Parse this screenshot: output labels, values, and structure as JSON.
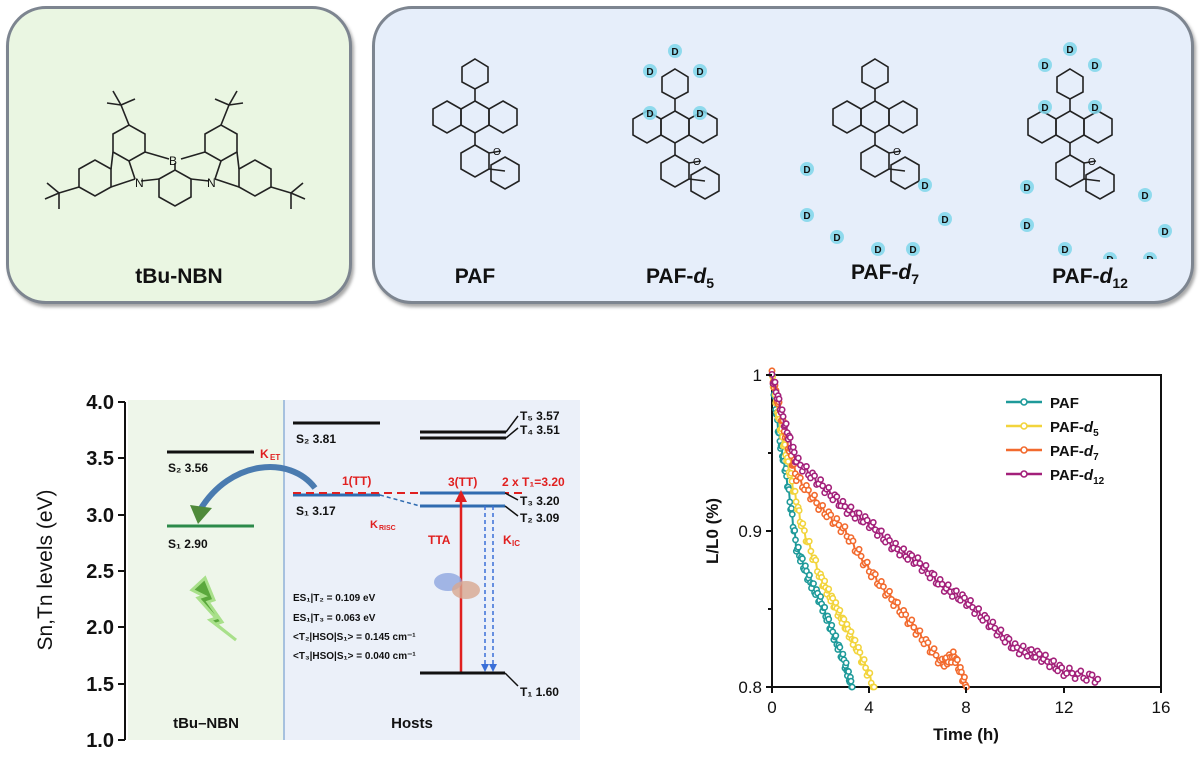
{
  "panels": {
    "emitter": {
      "label": "tBu-NBN",
      "atoms": [
        "B",
        "N",
        "N"
      ]
    },
    "hosts": [
      {
        "label": "PAF",
        "suffix": "",
        "deuterium_count": 0
      },
      {
        "label": "PAF-",
        "suffix": "d",
        "sub": "5",
        "deuterium_count": 5
      },
      {
        "label": "PAF-",
        "suffix": "d",
        "sub": "7",
        "deuterium_count": 7
      },
      {
        "label": "PAF-",
        "suffix": "d",
        "sub": "12",
        "deuterium_count": 12
      }
    ],
    "deuterium_symbol": "D",
    "oxygen_symbol": "O"
  },
  "energy_diagram": {
    "ylabel": "Sn,Tn levels (eV)",
    "yticks": [
      "4.0",
      "3.5",
      "3.0",
      "2.5",
      "2.0",
      "1.5",
      "1.0"
    ],
    "regions": {
      "left": "tBu–NBN",
      "right": "Hosts"
    },
    "emitter_levels": [
      {
        "name": "S2",
        "value": "3.56",
        "label": "S₂ 3.56"
      },
      {
        "name": "S1",
        "value": "2.90",
        "label": "S₁ 2.90"
      }
    ],
    "host_levels": [
      {
        "name": "S2",
        "value": "3.81",
        "label": "S₂ 3.81"
      },
      {
        "name": "S1",
        "value": "3.17",
        "label": "S₁ 3.17"
      },
      {
        "name": "T5",
        "value": "3.57",
        "label": "T₅ 3.57"
      },
      {
        "name": "T4",
        "value": "3.51",
        "label": "T₄ 3.51"
      },
      {
        "name": "T3",
        "value": "3.20",
        "label": "T₃ 3.20"
      },
      {
        "name": "T2",
        "value": "3.09",
        "label": "T₂ 3.09"
      },
      {
        "name": "T1",
        "value": "1.60",
        "label": "T₁ 1.60"
      }
    ],
    "annotations": {
      "ket": "K",
      "ket_sub": "ET",
      "tt1": "1(TT)",
      "tt3": "3(TT)",
      "two_t1": "2 x T₁=3.20",
      "krisc": "K",
      "krisc_sub": "RISC",
      "tta": "TTA",
      "kic": "K",
      "kic_sub": "IC",
      "t1_bubble": "T₁"
    },
    "params": [
      "ES₁|T₂ = 0.109 eV",
      "ES₁|T₃ = 0.063 eV",
      "<T₂|HSO|S₁> = 0.145 cm⁻¹",
      "<T₃|HSO|S₁> = 0.040 cm⁻¹"
    ]
  },
  "chart_data": {
    "type": "scatter",
    "title": "",
    "xlabel": "Time (h)",
    "ylabel": "L/L0 (%)",
    "xlim": [
      0,
      16
    ],
    "ylim": [
      0.8,
      1.0
    ],
    "xticks": [
      "0",
      "4",
      "8",
      "12",
      "16"
    ],
    "yticks": [
      "1",
      "0.9",
      "0.8"
    ],
    "legend_position": "upper right",
    "series": [
      {
        "name": "PAF",
        "color": "#1e9a9a",
        "x": [
          0,
          0.3,
          0.6,
          1.0,
          1.5,
          2.0,
          2.5,
          3.0,
          3.3
        ],
        "y": [
          1.0,
          0.96,
          0.935,
          0.89,
          0.87,
          0.855,
          0.835,
          0.815,
          0.8
        ]
      },
      {
        "name": "PAF-d5",
        "color": "#f2d43c",
        "x": [
          0,
          0.3,
          0.7,
          1.2,
          2.0,
          2.5,
          3.0,
          3.5,
          4.2
        ],
        "y": [
          1.0,
          0.97,
          0.94,
          0.905,
          0.87,
          0.855,
          0.84,
          0.825,
          0.8
        ]
      },
      {
        "name": "PAF-d7",
        "color": "#f26a2e",
        "x": [
          0,
          0.5,
          1.0,
          2.0,
          3.0,
          4.0,
          5.0,
          6.0,
          7.0,
          7.5,
          8.0
        ],
        "y": [
          1.0,
          0.965,
          0.935,
          0.915,
          0.9,
          0.875,
          0.855,
          0.835,
          0.815,
          0.82,
          0.8
        ]
      },
      {
        "name": "PAF-d12",
        "color": "#a3207a",
        "x": [
          0,
          0.5,
          1.0,
          2.0,
          3.0,
          4.0,
          5.0,
          6.0,
          7.0,
          8.0,
          9.0,
          10.0,
          11.0,
          12.0,
          13.4
        ],
        "y": [
          1.0,
          0.97,
          0.945,
          0.93,
          0.915,
          0.905,
          0.89,
          0.88,
          0.865,
          0.855,
          0.84,
          0.825,
          0.82,
          0.81,
          0.805
        ]
      }
    ]
  }
}
